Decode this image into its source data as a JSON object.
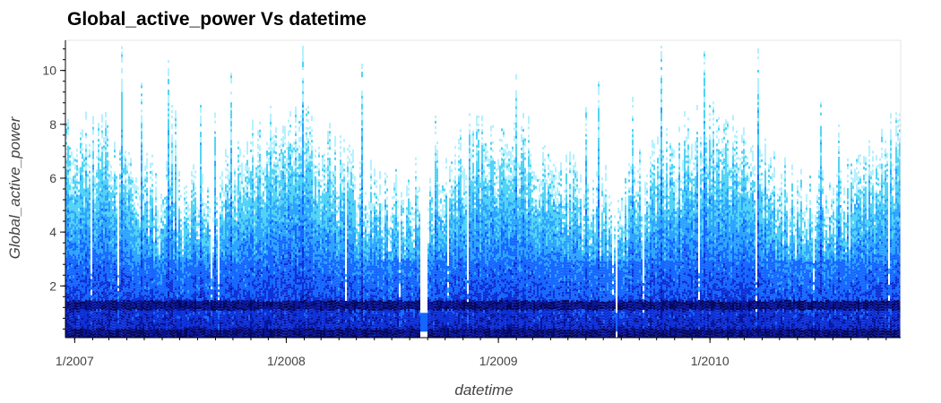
{
  "chart_data": {
    "type": "heatmap",
    "title": "Global_active_power Vs datetime",
    "xlabel": "datetime",
    "ylabel": "Global_active_power",
    "x_range": [
      "2006-12-16",
      "2010-11-26"
    ],
    "x_ticks": [
      {
        "date": "2007-01-01",
        "label": "1/2007"
      },
      {
        "date": "2008-01-01",
        "label": "1/2008"
      },
      {
        "date": "2009-01-01",
        "label": "1/2009"
      },
      {
        "date": "2010-01-01",
        "label": "1/2010"
      }
    ],
    "ylim": [
      0.08,
      11.12
    ],
    "y_ticks": [
      2,
      4,
      6,
      8,
      10
    ],
    "grid": false,
    "colormap": [
      "#ffffff",
      "#b3f0ff",
      "#4fd2f5",
      "#2aa3ff",
      "#1466ff",
      "#0b2fd6",
      "#06129a",
      "#020760"
    ],
    "gaps": [
      {
        "start": "2008-08-18",
        "end": "2008-08-29"
      },
      {
        "start": "2009-07-21",
        "end": "2009-07-24"
      }
    ],
    "daily_baseline_band": [
      0.1,
      0.45
    ],
    "typical_level_band": [
      1.15,
      1.5
    ],
    "upper_envelope_typical": 6.5
  }
}
